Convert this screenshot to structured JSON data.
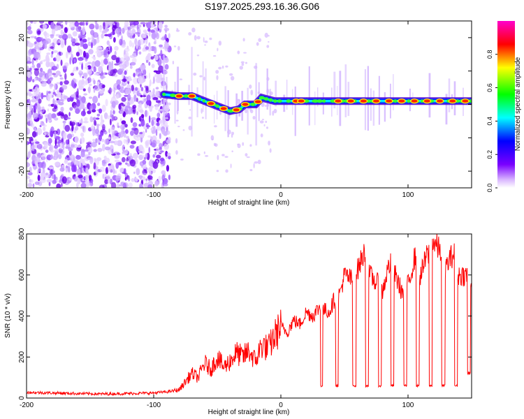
{
  "title": "S197.2025.293.16.36.G06",
  "colorbar": {
    "label": "Normalized spectral amplitude",
    "ticks": [
      "0.0",
      "0.2",
      "0.4",
      "0.6",
      "0.8"
    ],
    "tick_values": [
      0.0,
      0.2,
      0.4,
      0.6,
      0.8
    ],
    "range": [
      0,
      1
    ],
    "colors": [
      "#ffffff",
      "#b14aff",
      "#0000ff",
      "#00ffff",
      "#00ff00",
      "#ffff00",
      "#ff0000",
      "#ff00cc"
    ]
  },
  "chart_data": [
    {
      "type": "heatmap",
      "name": "spectrogram",
      "xlabel": "Height of straight line (km)",
      "ylabel": "Frequency (Hz)",
      "xlim": [
        -200,
        150
      ],
      "ylim": [
        -25,
        25
      ],
      "xticks": [
        -200,
        -100,
        0,
        100
      ],
      "xtick_labels": [
        "-200",
        "-100",
        "0",
        "100"
      ],
      "yticks": [
        -20,
        -10,
        0,
        10,
        20
      ],
      "ytick_labels": [
        "-20",
        "-10",
        "0",
        "10",
        "20"
      ],
      "noise_region_x": [
        -200,
        -92
      ],
      "signal_start_x": -92,
      "ridge": {
        "x": [
          -92,
          -80,
          -70,
          -60,
          -50,
          -40,
          -33,
          -28,
          -20,
          -15,
          -10,
          -5,
          0,
          10,
          20,
          30,
          150
        ],
        "freq": [
          3,
          2.5,
          2.5,
          1,
          -0.5,
          -2,
          -1.5,
          0,
          0,
          2,
          1.5,
          1,
          1,
          1,
          1,
          1,
          1
        ]
      },
      "bright_blobs_x": [
        -80,
        -70,
        -55,
        -45,
        -35,
        -28,
        -18,
        12,
        16,
        45,
        55,
        65,
        75,
        85,
        95,
        105,
        115,
        125,
        135,
        145
      ]
    },
    {
      "type": "line",
      "name": "snr",
      "xlabel": "Height of straight line (km)",
      "ylabel": "SNR (10 * v/v)",
      "xlim": [
        -200,
        150
      ],
      "ylim": [
        0,
        800
      ],
      "xticks": [
        -200,
        -100,
        0,
        100
      ],
      "xtick_labels": [
        "-200",
        "-100",
        "0",
        "100"
      ],
      "yticks": [
        0,
        200,
        400,
        600,
        800
      ],
      "ytick_labels": [
        "0",
        "200",
        "400",
        "600",
        "800"
      ],
      "color": "#ff0000",
      "series": [
        {
          "name": "SNR",
          "x": [
            -200,
            -180,
            -160,
            -140,
            -120,
            -100,
            -90,
            -80,
            -75,
            -70,
            -65,
            -60,
            -55,
            -50,
            -45,
            -40,
            -35,
            -30,
            -25,
            -20,
            -15,
            -10,
            -5,
            0,
            5,
            10,
            15,
            20,
            25,
            30,
            32,
            34,
            38,
            42,
            44,
            46,
            50,
            55,
            58,
            60,
            65,
            68,
            70,
            75,
            78,
            80,
            85,
            88,
            90,
            95,
            98,
            100,
            105,
            108,
            110,
            115,
            118,
            120,
            125,
            128,
            130,
            135,
            138,
            140,
            145,
            148,
            150
          ],
          "y": [
            28,
            25,
            22,
            20,
            22,
            25,
            30,
            40,
            80,
            120,
            100,
            170,
            140,
            200,
            150,
            180,
            220,
            200,
            230,
            180,
            260,
            240,
            300,
            350,
            320,
            380,
            360,
            420,
            400,
            440,
            60,
            430,
            420,
            480,
            60,
            500,
            600,
            580,
            60,
            620,
            700,
            60,
            600,
            560,
            60,
            520,
            650,
            60,
            600,
            520,
            60,
            550,
            680,
            60,
            600,
            700,
            60,
            760,
            720,
            60,
            640,
            700,
            60,
            600,
            600,
            120,
            580
          ]
        }
      ]
    }
  ]
}
